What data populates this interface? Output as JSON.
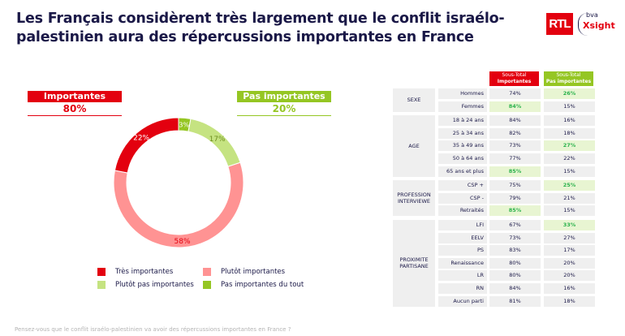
{
  "header": {
    "title": "Les Français considèrent très largement que le conflit israélo-palestinien aura des répercussions importantes en France",
    "logo_rtl": "RTL",
    "logo_bva": "bva",
    "logo_xsight": "Xsight"
  },
  "colors": {
    "tres_importantes": "#e3000f",
    "plutot_importantes": "#ff9393",
    "plutot_pas_importantes": "#c5e381",
    "pas_importantes_du_tout": "#95c623",
    "highlight_bg": "#e8f5d2",
    "highlight_text": "#2bb24c"
  },
  "kpis": {
    "importantes": {
      "label": "Importantes",
      "value": "80%"
    },
    "pas_importantes": {
      "label": "Pas importantes",
      "value": "20%"
    }
  },
  "chart_data": {
    "type": "pie",
    "variant": "donut",
    "title": "",
    "categories": [
      "Très importantes",
      "Plutôt importantes",
      "Plutôt pas importantes",
      "Pas importantes du tout"
    ],
    "values": [
      22,
      58,
      17,
      3
    ],
    "labels": [
      "22%",
      "58%",
      "17%",
      "3%"
    ],
    "legend_position": "bottom",
    "order_clockwise_from_top": [
      "Pas importantes du tout",
      "Plutôt pas importantes",
      "Plutôt importantes",
      "Très importantes"
    ]
  },
  "legend": [
    {
      "label": "Très importantes",
      "color_key": "tres_importantes"
    },
    {
      "label": "Plutôt importantes",
      "color_key": "plutot_importantes"
    },
    {
      "label": "Plutôt pas importantes",
      "color_key": "plutot_pas_importantes"
    },
    {
      "label": "Pas importantes du tout",
      "color_key": "pas_importantes_du_tout"
    }
  ],
  "table": {
    "col1_header": [
      "Sous-Total",
      "Importantes"
    ],
    "col2_header": [
      "Sous-Total",
      "Pas importantes"
    ],
    "groups": [
      {
        "name": "SEXE",
        "rows": [
          {
            "label": "Hommes",
            "imp": "74%",
            "pas": "26%",
            "hl": "pas"
          },
          {
            "label": "Femmes",
            "imp": "84%",
            "pas": "15%",
            "hl": "imp"
          }
        ]
      },
      {
        "name": "AGE",
        "rows": [
          {
            "label": "18 à 24 ans",
            "imp": "84%",
            "pas": "16%",
            "hl": ""
          },
          {
            "label": "25 à 34 ans",
            "imp": "82%",
            "pas": "18%",
            "hl": ""
          },
          {
            "label": "35 à 49 ans",
            "imp": "73%",
            "pas": "27%",
            "hl": "pas"
          },
          {
            "label": "50 à 64 ans",
            "imp": "77%",
            "pas": "22%",
            "hl": ""
          },
          {
            "label": "65 ans et plus",
            "imp": "85%",
            "pas": "15%",
            "hl": "imp"
          }
        ]
      },
      {
        "name": "PROFESSION INTERVIEWE",
        "rows": [
          {
            "label": "CSP +",
            "imp": "75%",
            "pas": "25%",
            "hl": "pas"
          },
          {
            "label": "CSP -",
            "imp": "79%",
            "pas": "21%",
            "hl": ""
          },
          {
            "label": "Retraités",
            "imp": "85%",
            "pas": "15%",
            "hl": "imp"
          }
        ]
      },
      {
        "name": "PROXIMITE PARTISANE",
        "rows": [
          {
            "label": "LFI",
            "imp": "67%",
            "pas": "33%",
            "hl": "pas"
          },
          {
            "label": "EELV",
            "imp": "73%",
            "pas": "27%",
            "hl": ""
          },
          {
            "label": "PS",
            "imp": "83%",
            "pas": "17%",
            "hl": ""
          },
          {
            "label": "Renaissance",
            "imp": "80%",
            "pas": "20%",
            "hl": ""
          },
          {
            "label": "LR",
            "imp": "80%",
            "pas": "20%",
            "hl": ""
          },
          {
            "label": "RN",
            "imp": "84%",
            "pas": "16%",
            "hl": ""
          },
          {
            "label": "Aucun parti",
            "imp": "81%",
            "pas": "18%",
            "hl": ""
          }
        ]
      }
    ]
  },
  "footer": {
    "question": "Pensez-vous que le conflit israélo-palestinien va avoir des répercussions importantes en France ?"
  }
}
